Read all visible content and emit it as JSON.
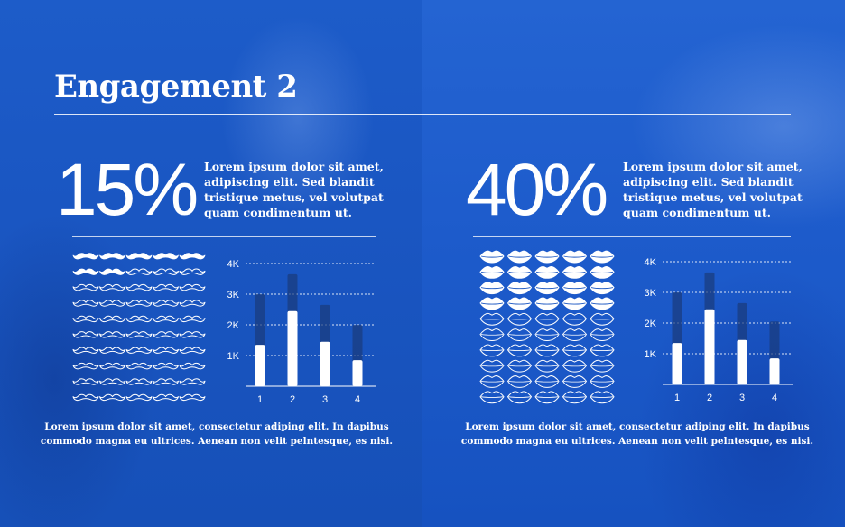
{
  "title": "Engagement 2",
  "colors": {
    "background": "#1a56c2",
    "foreground": "#ffffff",
    "bar_track": "#1a3a7a"
  },
  "panels": [
    {
      "percent": "15%",
      "description": "Lorem ipsum dolor sit amet, adipiscing elit. Sed blandit tristique metus, vel volutpat quam condimentum ut.",
      "icon": "mustache-icon",
      "icon_grid": {
        "columns": 5,
        "rows": 10,
        "filled_count": 7
      },
      "footer": "Lorem ipsum dolor sit amet, consectetur adiping elit. In dapibus commodo magna eu ultrices. Aenean non velit pelntesque, es nisi."
    },
    {
      "percent": "40%",
      "description": "Lorem ipsum dolor sit amet, adipiscing elit. Sed blandit tristique metus, vel volutpat quam condimentum ut.",
      "icon": "lips-icon",
      "icon_grid": {
        "columns": 5,
        "rows": 10,
        "filled_count": 20
      },
      "footer": "Lorem ipsum dolor sit amet, consectetur adiping elit. In dapibus commodo magna eu ultrices. Aenean non velit pelntesque, es nisi."
    }
  ],
  "chart_data": [
    {
      "type": "bar",
      "categories": [
        "1",
        "2",
        "3",
        "4"
      ],
      "series": [
        {
          "values": [
            3000,
            3650,
            2650,
            2000
          ]
        },
        {
          "values": [
            1350,
            2450,
            1450,
            850
          ]
        }
      ],
      "y_ticks": [
        1000,
        2000,
        3000,
        4000
      ],
      "y_tick_labels": [
        "1K",
        "2K",
        "3K",
        "4K"
      ],
      "ylim": [
        0,
        4000
      ],
      "grid": true
    },
    {
      "type": "bar",
      "categories": [
        "1",
        "2",
        "3",
        "4"
      ],
      "series": [
        {
          "values": [
            3000,
            3650,
            2650,
            2050
          ]
        },
        {
          "values": [
            1350,
            2450,
            1450,
            850
          ]
        }
      ],
      "y_ticks": [
        1000,
        2000,
        3000,
        4000
      ],
      "y_tick_labels": [
        "1K",
        "2K",
        "3K",
        "4K"
      ],
      "ylim": [
        0,
        4000
      ],
      "grid": true
    }
  ]
}
